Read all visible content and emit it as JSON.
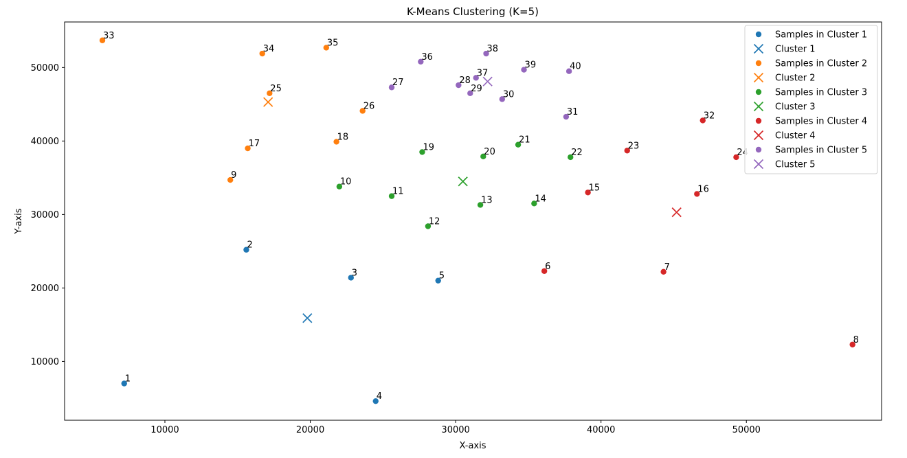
{
  "chart_data": {
    "type": "scatter",
    "title": "K-Means Clustering (K=5)",
    "xlabel": "X-axis",
    "ylabel": "Y-axis",
    "xlim": [
      3100,
      59300
    ],
    "ylim": [
      2000,
      56200
    ],
    "xticks": [
      10000,
      20000,
      30000,
      40000,
      50000
    ],
    "yticks": [
      10000,
      20000,
      30000,
      40000,
      50000
    ],
    "grid": false,
    "legend_position": "top-right",
    "clusters": [
      {
        "sample_name": "Samples in Cluster 1",
        "centroid_name": "Cluster 1",
        "color": "#1f77b4",
        "centroid": [
          19800,
          15900
        ],
        "points": [
          {
            "label": "1",
            "x": 7200,
            "y": 7000
          },
          {
            "label": "2",
            "x": 15600,
            "y": 25200
          },
          {
            "label": "3",
            "x": 22800,
            "y": 21400
          },
          {
            "label": "4",
            "x": 24500,
            "y": 4600
          },
          {
            "label": "5",
            "x": 28800,
            "y": 21000
          }
        ]
      },
      {
        "sample_name": "Samples in Cluster 2",
        "centroid_name": "Cluster 2",
        "color": "#ff7f0e",
        "centroid": [
          17100,
          45300
        ],
        "points": [
          {
            "label": "9",
            "x": 14500,
            "y": 34700
          },
          {
            "label": "17",
            "x": 15700,
            "y": 39000
          },
          {
            "label": "18",
            "x": 21800,
            "y": 39900
          },
          {
            "label": "25",
            "x": 17200,
            "y": 46500
          },
          {
            "label": "26",
            "x": 23600,
            "y": 44100
          },
          {
            "label": "33",
            "x": 5700,
            "y": 53700
          },
          {
            "label": "34",
            "x": 16700,
            "y": 51900
          },
          {
            "label": "35",
            "x": 21100,
            "y": 52700
          }
        ]
      },
      {
        "sample_name": "Samples in Cluster 3",
        "centroid_name": "Cluster 3",
        "color": "#2ca02c",
        "centroid": [
          30500,
          34500
        ],
        "points": [
          {
            "label": "10",
            "x": 22000,
            "y": 33800
          },
          {
            "label": "11",
            "x": 25600,
            "y": 32500
          },
          {
            "label": "12",
            "x": 28100,
            "y": 28400
          },
          {
            "label": "13",
            "x": 31700,
            "y": 31300
          },
          {
            "label": "14",
            "x": 35400,
            "y": 31500
          },
          {
            "label": "19",
            "x": 27700,
            "y": 38500
          },
          {
            "label": "20",
            "x": 31900,
            "y": 37900
          },
          {
            "label": "21",
            "x": 34300,
            "y": 39500
          },
          {
            "label": "22",
            "x": 37900,
            "y": 37800
          }
        ]
      },
      {
        "sample_name": "Samples in Cluster 4",
        "centroid_name": "Cluster 4",
        "color": "#d62728",
        "centroid": [
          45200,
          30300
        ],
        "points": [
          {
            "label": "6",
            "x": 36100,
            "y": 22300
          },
          {
            "label": "7",
            "x": 44300,
            "y": 22200
          },
          {
            "label": "8",
            "x": 57300,
            "y": 12300
          },
          {
            "label": "15",
            "x": 39100,
            "y": 33000
          },
          {
            "label": "16",
            "x": 46600,
            "y": 32800
          },
          {
            "label": "23",
            "x": 41800,
            "y": 38700
          },
          {
            "label": "24",
            "x": 49300,
            "y": 37800
          },
          {
            "label": "32",
            "x": 47000,
            "y": 42800
          }
        ]
      },
      {
        "sample_name": "Samples in Cluster 5",
        "centroid_name": "Cluster 5",
        "color": "#9467bd",
        "centroid": [
          32200,
          48100
        ],
        "points": [
          {
            "label": "27",
            "x": 25600,
            "y": 47300
          },
          {
            "label": "28",
            "x": 30200,
            "y": 47600
          },
          {
            "label": "29",
            "x": 31000,
            "y": 46500
          },
          {
            "label": "30",
            "x": 33200,
            "y": 45700
          },
          {
            "label": "31",
            "x": 37600,
            "y": 43300
          },
          {
            "label": "36",
            "x": 27600,
            "y": 50800
          },
          {
            "label": "37",
            "x": 31400,
            "y": 48600
          },
          {
            "label": "38",
            "x": 32100,
            "y": 51900
          },
          {
            "label": "39",
            "x": 34700,
            "y": 49700
          },
          {
            "label": "40",
            "x": 37800,
            "y": 49500
          }
        ]
      }
    ]
  }
}
